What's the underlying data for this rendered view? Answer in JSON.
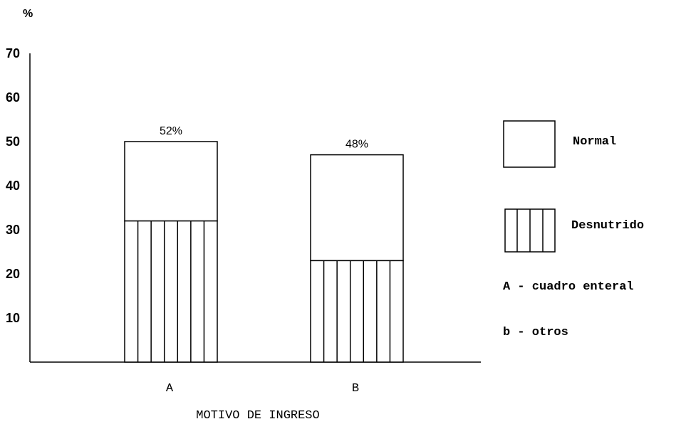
{
  "chart_data": {
    "type": "bar",
    "stacked": true,
    "categories": [
      "A",
      "B"
    ],
    "series": [
      {
        "name": "Desnutrido",
        "values": [
          32,
          23
        ]
      },
      {
        "name": "Normal",
        "values": [
          18,
          24
        ]
      }
    ],
    "totals_labels": [
      "52%",
      "48%"
    ],
    "ylabel": "%",
    "xlabel": "MOTIVO DE INGRESO",
    "yticks": [
      "10",
      "20",
      "30",
      "40",
      "50",
      "60",
      "70"
    ],
    "ylim": [
      0,
      70
    ],
    "legend": {
      "placement": "right",
      "items": [
        "Normal",
        "Desnutrido"
      ],
      "notes": [
        "A - cuadro enteral",
        "b - otros"
      ]
    },
    "grid": false
  }
}
